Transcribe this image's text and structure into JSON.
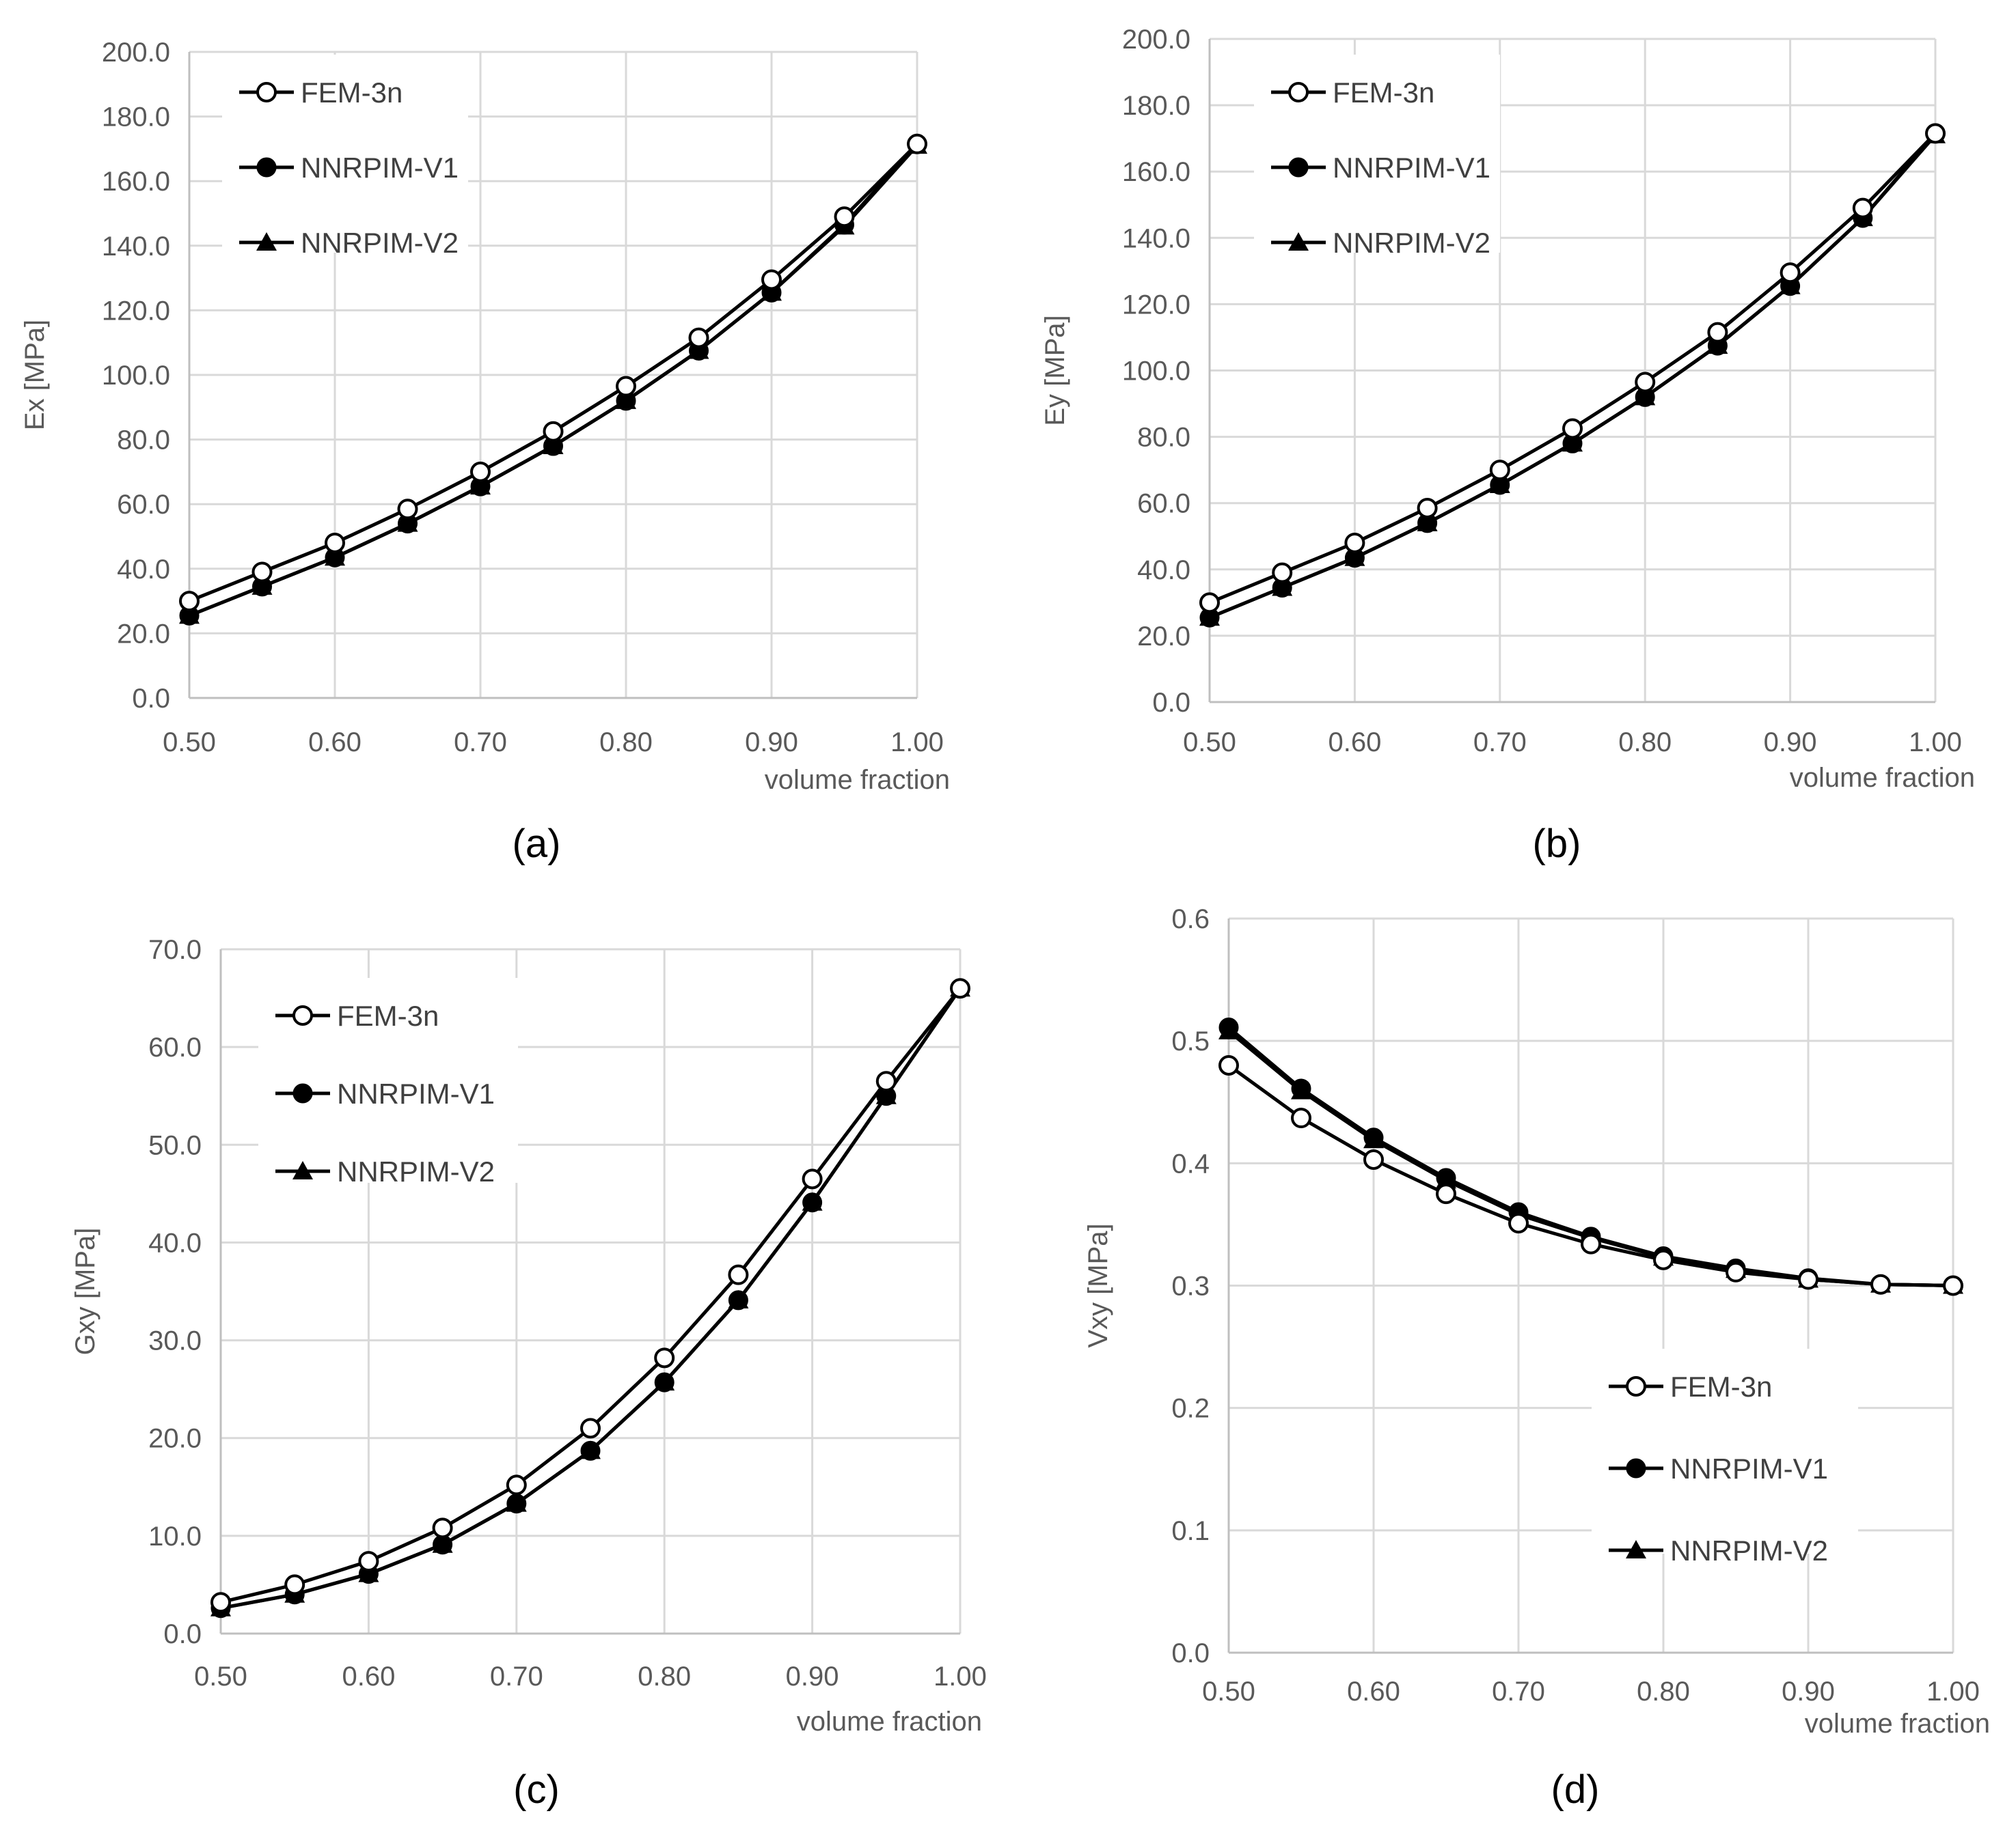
{
  "colors": {
    "grid": "#d9d9d9",
    "axis": "#bfbfbf",
    "text": "#595959",
    "series": "#000000"
  },
  "legend_markers": [
    "open-circle",
    "filled-circle",
    "filled-triangle"
  ],
  "chart_data": [
    {
      "type": "line",
      "caption": "(a)",
      "xlabel": "volume fraction",
      "ylabel": "Ex [MPa]",
      "xlim": [
        0.5,
        1.0
      ],
      "ylim": [
        0,
        200
      ],
      "xticks": [
        "0.50",
        "0.60",
        "0.70",
        "0.80",
        "0.90",
        "1.00"
      ],
      "yticks": [
        "0.0",
        "20.0",
        "40.0",
        "60.0",
        "80.0",
        "100.0",
        "120.0",
        "140.0",
        "160.0",
        "180.0",
        "200.0"
      ],
      "x": [
        0.5,
        0.55,
        0.6,
        0.65,
        0.7,
        0.75,
        0.8,
        0.85,
        0.9,
        0.95,
        1.0
      ],
      "legend_position": "top-left",
      "series": [
        {
          "name": "FEM-3n",
          "marker": "open-circle",
          "values": [
            30.0,
            39.0,
            48.0,
            58.5,
            70.0,
            82.5,
            96.5,
            111.5,
            129.5,
            149.0,
            171.5
          ]
        },
        {
          "name": "NNRPIM-V1",
          "marker": "filled-circle",
          "values": [
            25.5,
            34.5,
            43.5,
            54.0,
            65.5,
            78.0,
            92.0,
            107.5,
            125.5,
            146.5,
            171.5
          ]
        },
        {
          "name": "NNRPIM-V2",
          "marker": "filled-triangle",
          "values": [
            25.5,
            34.5,
            43.5,
            54.0,
            65.5,
            78.0,
            92.0,
            107.5,
            125.5,
            146.0,
            171.0
          ]
        }
      ]
    },
    {
      "type": "line",
      "caption": "(b)",
      "xlabel": "volume fraction",
      "ylabel": "Ey [MPa]",
      "xlim": [
        0.5,
        1.0
      ],
      "ylim": [
        0,
        200
      ],
      "xticks": [
        "0.50",
        "0.60",
        "0.70",
        "0.80",
        "0.90",
        "1.00"
      ],
      "yticks": [
        "0.0",
        "20.0",
        "40.0",
        "60.0",
        "80.0",
        "100.0",
        "120.0",
        "140.0",
        "160.0",
        "180.0",
        "200.0"
      ],
      "x": [
        0.5,
        0.55,
        0.6,
        0.65,
        0.7,
        0.75,
        0.8,
        0.85,
        0.9,
        0.95,
        1.0
      ],
      "legend_position": "top-left",
      "series": [
        {
          "name": "FEM-3n",
          "marker": "open-circle",
          "values": [
            30.0,
            39.0,
            48.0,
            58.5,
            70.0,
            82.5,
            96.5,
            111.5,
            129.5,
            149.0,
            171.5
          ]
        },
        {
          "name": "NNRPIM-V1",
          "marker": "filled-circle",
          "values": [
            25.5,
            34.5,
            43.5,
            54.0,
            65.5,
            78.0,
            92.0,
            107.5,
            125.5,
            146.0,
            171.5
          ]
        },
        {
          "name": "NNRPIM-V2",
          "marker": "filled-triangle",
          "values": [
            25.5,
            34.5,
            43.5,
            54.0,
            65.5,
            78.0,
            92.0,
            107.5,
            125.5,
            146.0,
            171.0
          ]
        }
      ]
    },
    {
      "type": "line",
      "caption": "(c)",
      "xlabel": "volume fraction",
      "ylabel": "Gxy [MPa]",
      "xlim": [
        0.5,
        1.0
      ],
      "ylim": [
        0,
        70
      ],
      "xticks": [
        "0.50",
        "0.60",
        "0.70",
        "0.80",
        "0.90",
        "1.00"
      ],
      "yticks": [
        "0.0",
        "10.0",
        "20.0",
        "30.0",
        "40.0",
        "50.0",
        "60.0",
        "70.0"
      ],
      "x": [
        0.5,
        0.55,
        0.6,
        0.65,
        0.7,
        0.75,
        0.8,
        0.85,
        0.9,
        0.95,
        1.0
      ],
      "legend_position": "top-left",
      "series": [
        {
          "name": "FEM-3n",
          "marker": "open-circle",
          "values": [
            3.2,
            5.0,
            7.4,
            10.8,
            15.2,
            21.0,
            28.2,
            36.7,
            46.5,
            56.5,
            66.0
          ]
        },
        {
          "name": "NNRPIM-V1",
          "marker": "filled-circle",
          "values": [
            2.6,
            4.0,
            6.1,
            9.1,
            13.3,
            18.7,
            25.7,
            34.1,
            44.1,
            55.0,
            66.0
          ]
        },
        {
          "name": "NNRPIM-V2",
          "marker": "filled-triangle",
          "values": [
            2.6,
            4.0,
            6.1,
            9.1,
            13.3,
            18.7,
            25.7,
            34.1,
            44.1,
            55.0,
            66.0
          ]
        }
      ]
    },
    {
      "type": "line",
      "caption": "(d)",
      "xlabel": "volume fraction",
      "ylabel": "Vxy [MPa]",
      "xlim": [
        0.5,
        1.0
      ],
      "ylim": [
        0,
        0.6
      ],
      "xticks": [
        "0.50",
        "0.60",
        "0.70",
        "0.80",
        "0.90",
        "1.00"
      ],
      "yticks": [
        "0.0",
        "0.1",
        "0.2",
        "0.3",
        "0.4",
        "0.5",
        "0.6"
      ],
      "x": [
        0.5,
        0.55,
        0.6,
        0.65,
        0.7,
        0.75,
        0.8,
        0.85,
        0.9,
        0.95,
        1.0
      ],
      "legend_position": "bottom-right",
      "series": [
        {
          "name": "FEM-3n",
          "marker": "open-circle",
          "values": [
            0.48,
            0.437,
            0.403,
            0.375,
            0.351,
            0.334,
            0.321,
            0.311,
            0.305,
            0.301,
            0.3
          ]
        },
        {
          "name": "NNRPIM-V1",
          "marker": "filled-circle",
          "values": [
            0.511,
            0.461,
            0.421,
            0.388,
            0.36,
            0.34,
            0.324,
            0.314,
            0.306,
            0.301,
            0.3
          ]
        },
        {
          "name": "NNRPIM-V2",
          "marker": "filled-triangle",
          "values": [
            0.508,
            0.459,
            0.419,
            0.386,
            0.358,
            0.339,
            0.323,
            0.313,
            0.305,
            0.301,
            0.3
          ]
        }
      ]
    }
  ]
}
